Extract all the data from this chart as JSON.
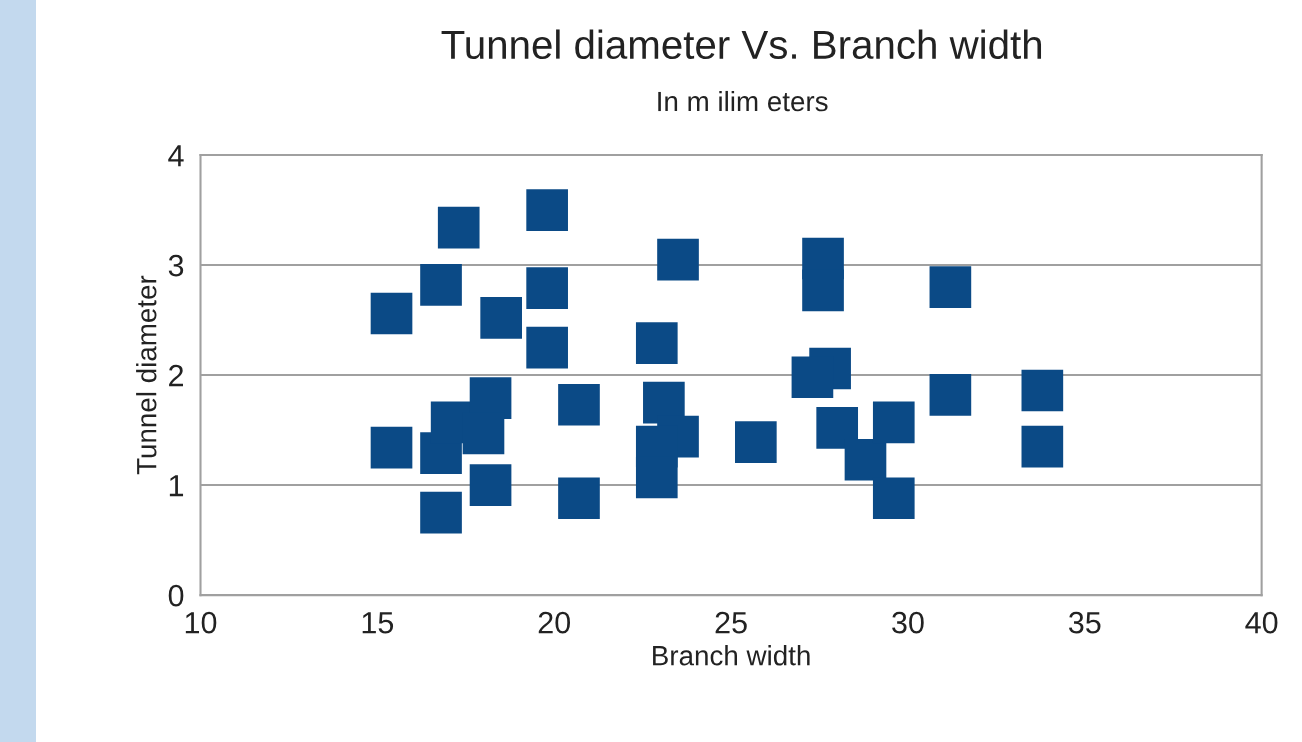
{
  "chart_data": {
    "type": "scatter",
    "title": "Tunnel diameter Vs. Branch width",
    "subtitle": "In m ilim eters",
    "xlabel": "Branch width",
    "ylabel": "Tunnel diameter",
    "x": [
      15.4,
      15.4,
      16.8,
      16.8,
      16.8,
      17.3,
      17.1,
      18.2,
      18.0,
      18.2,
      18.5,
      19.8,
      19.8,
      19.8,
      20.7,
      20.7,
      23.5,
      22.9,
      23.1,
      23.5,
      22.9,
      22.9,
      25.7,
      27.6,
      27.6,
      31.2,
      27.8,
      27.3,
      28.0,
      28.8,
      29.6,
      29.6,
      31.2,
      33.8,
      33.8
    ],
    "series": [
      {
        "color": "#0b4a86",
        "values": [
          2.56,
          1.34,
          2.82,
          1.29,
          0.75,
          3.34,
          1.57,
          1.79,
          1.47,
          1.0,
          2.52,
          3.5,
          2.79,
          2.25,
          1.73,
          0.88,
          3.05,
          2.29,
          1.75,
          1.44,
          1.35,
          1.07,
          1.39,
          3.06,
          2.77,
          2.8,
          2.06,
          1.98,
          1.52,
          1.23,
          1.57,
          0.88,
          1.82,
          1.86,
          1.35
        ]
      }
    ],
    "marker": "square",
    "xlim": [
      10,
      40
    ],
    "xticks": [
      10,
      15,
      20,
      25,
      30,
      35,
      40
    ],
    "ylim": [
      0,
      4
    ],
    "yticks": [
      0,
      1,
      2,
      3,
      4
    ],
    "grid": "y",
    "legend": false
  }
}
